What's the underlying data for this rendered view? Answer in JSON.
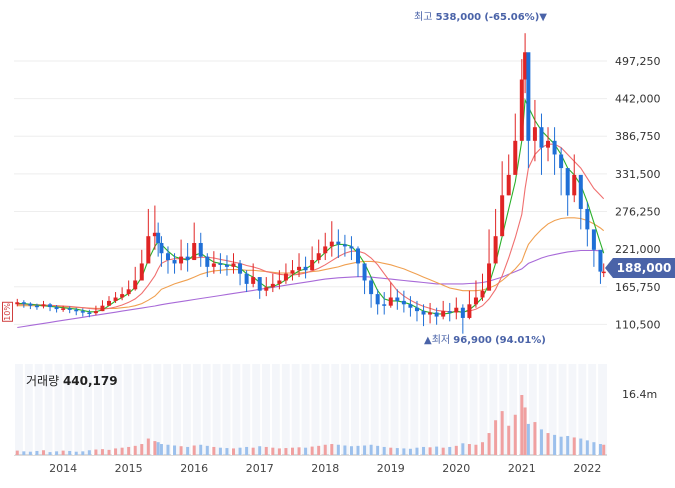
{
  "chart_data": {
    "type": "candlestick",
    "y_axis": {
      "ticks": [
        110500,
        165750,
        221000,
        276250,
        331500,
        386750,
        442000,
        497250
      ],
      "labels": [
        "110,500",
        "165,750",
        "221,000",
        "276,250",
        "331,500",
        "386,750",
        "442,000",
        "497,250"
      ],
      "range": [
        70000,
        575000
      ]
    },
    "x_axis": {
      "labels": [
        "2014",
        "2015",
        "2016",
        "2017",
        "2018",
        "2019",
        "2020",
        "2021",
        "2022"
      ],
      "range": [
        2013.25,
        2022.3
      ]
    },
    "high_annotation": {
      "label": "최고",
      "value": "538,000",
      "change": "(-65.06%)",
      "arrow": "▼"
    },
    "low_annotation": {
      "label": "최저",
      "value": "96,900",
      "change": "(94.01%)",
      "arrow": "▲"
    },
    "current_price": "188,000",
    "volume": {
      "label": "거래량",
      "value": "440,179",
      "max_tick": "16.4m"
    },
    "side_label": "10%",
    "colors": {
      "up": "#e02424",
      "down": "#1f6fd6",
      "ma5": "#2bb02b",
      "ma20": "#f07070",
      "ma60": "#f0a050",
      "ma120": "#a86ad8",
      "vol_up": "#f0a0a0",
      "vol_down": "#9cc0ec",
      "accent": "#4a63a8"
    },
    "series": [
      {
        "name": "price_close",
        "x": [
          2013.3,
          2013.4,
          2013.5,
          2013.6,
          2013.7,
          2013.8,
          2013.9,
          2014.0,
          2014.1,
          2014.2,
          2014.3,
          2014.4,
          2014.5,
          2014.6,
          2014.7,
          2014.8,
          2014.9,
          2015.0,
          2015.1,
          2015.2,
          2015.3,
          2015.4,
          2015.45,
          2015.5,
          2015.6,
          2015.7,
          2015.8,
          2015.9,
          2016.0,
          2016.1,
          2016.2,
          2016.3,
          2016.4,
          2016.5,
          2016.6,
          2016.7,
          2016.8,
          2016.9,
          2017.0,
          2017.1,
          2017.2,
          2017.3,
          2017.4,
          2017.5,
          2017.6,
          2017.7,
          2017.8,
          2017.9,
          2018.0,
          2018.1,
          2018.2,
          2018.3,
          2018.4,
          2018.5,
          2018.6,
          2018.7,
          2018.8,
          2018.9,
          2019.0,
          2019.1,
          2019.2,
          2019.3,
          2019.4,
          2019.5,
          2019.6,
          2019.7,
          2019.8,
          2019.9,
          2020.0,
          2020.1,
          2020.2,
          2020.3,
          2020.4,
          2020.5,
          2020.6,
          2020.7,
          2020.8,
          2020.9,
          2021.0,
          2021.05,
          2021.1,
          2021.2,
          2021.3,
          2021.4,
          2021.5,
          2021.6,
          2021.7,
          2021.8,
          2021.9,
          2022.0,
          2022.1,
          2022.2,
          2022.25
        ],
        "y": [
          143000,
          141000,
          138000,
          137000,
          140000,
          136000,
          133000,
          134000,
          132000,
          130000,
          128000,
          127000,
          130000,
          138000,
          145000,
          150000,
          155000,
          162000,
          175000,
          200000,
          240000,
          245000,
          230000,
          215000,
          205000,
          200000,
          210000,
          205000,
          230000,
          210000,
          195000,
          200000,
          198000,
          195000,
          200000,
          185000,
          170000,
          180000,
          160000,
          165000,
          170000,
          175000,
          185000,
          190000,
          195000,
          190000,
          205000,
          215000,
          225000,
          232000,
          228000,
          225000,
          222000,
          200000,
          175000,
          155000,
          140000,
          138000,
          150000,
          145000,
          140000,
          135000,
          130000,
          125000,
          128000,
          122000,
          130000,
          128000,
          135000,
          120000,
          140000,
          150000,
          160000,
          200000,
          240000,
          300000,
          330000,
          380000,
          470000,
          510000,
          380000,
          400000,
          370000,
          380000,
          360000,
          340000,
          300000,
          330000,
          280000,
          250000,
          220000,
          188000,
          188000
        ]
      },
      {
        "name": "price_high",
        "y": [
          148000,
          146000,
          143000,
          141000,
          145000,
          142000,
          139000,
          138000,
          137000,
          135000,
          134000,
          132000,
          138000,
          146000,
          152000,
          158000,
          165000,
          175000,
          195000,
          220000,
          280000,
          285000,
          260000,
          240000,
          225000,
          215000,
          235000,
          230000,
          260000,
          245000,
          215000,
          218000,
          215000,
          212000,
          215000,
          205000,
          190000,
          200000,
          180000,
          180000,
          185000,
          190000,
          200000,
          205000,
          215000,
          210000,
          225000,
          235000,
          245000,
          262000,
          250000,
          242000,
          240000,
          225000,
          198000,
          180000,
          162000,
          158000,
          172000,
          162000,
          160000,
          152000,
          145000,
          140000,
          142000,
          135000,
          145000,
          142000,
          150000,
          140000,
          160000,
          175000,
          185000,
          250000,
          280000,
          350000,
          360000,
          420000,
          500000,
          538000,
          450000,
          440000,
          420000,
          400000,
          400000,
          370000,
          340000,
          360000,
          310000,
          290000,
          245000,
          205000,
          200000
        ]
      },
      {
        "name": "price_low",
        "y": [
          137000,
          135000,
          133000,
          132000,
          134000,
          130000,
          128000,
          129000,
          127000,
          124000,
          122000,
          121000,
          124000,
          130000,
          138000,
          142000,
          146000,
          152000,
          160000,
          180000,
          220000,
          220000,
          210000,
          195000,
          185000,
          185000,
          190000,
          188000,
          205000,
          195000,
          180000,
          185000,
          185000,
          182000,
          185000,
          168000,
          158000,
          165000,
          148000,
          152000,
          158000,
          162000,
          170000,
          175000,
          180000,
          178000,
          190000,
          200000,
          205000,
          210000,
          208000,
          210000,
          205000,
          180000,
          155000,
          135000,
          125000,
          125000,
          135000,
          132000,
          128000,
          122000,
          115000,
          108000,
          112000,
          110000,
          118000,
          115000,
          118000,
          96900,
          118000,
          135000,
          145000,
          175000,
          210000,
          260000,
          300000,
          340000,
          420000,
          450000,
          340000,
          350000,
          330000,
          350000,
          330000,
          300000,
          270000,
          290000,
          250000,
          225000,
          195000,
          170000,
          180000
        ]
      },
      {
        "name": "ma5",
        "y": [
          141000,
          141000,
          140000,
          139000,
          138000,
          137000,
          136000,
          135000,
          134000,
          133000,
          131000,
          129000,
          129000,
          132000,
          138000,
          145000,
          150000,
          156000,
          165000,
          180000,
          205000,
          225000,
          232000,
          228000,
          218000,
          210000,
          207000,
          205000,
          212000,
          215000,
          208000,
          202000,
          200000,
          198000,
          197000,
          193000,
          185000,
          180000,
          172000,
          165000,
          166000,
          170000,
          176000,
          183000,
          189000,
          192000,
          198000,
          207000,
          216000,
          225000,
          228000,
          228000,
          225000,
          215000,
          200000,
          180000,
          160000,
          148000,
          145000,
          145000,
          143000,
          140000,
          135000,
          130000,
          128000,
          126000,
          126000,
          127000,
          130000,
          128000,
          132000,
          140000,
          150000,
          170000,
          200000,
          240000,
          280000,
          320000,
          380000,
          440000,
          430000,
          410000,
          395000,
          385000,
          375000,
          360000,
          340000,
          330000,
          315000,
          290000,
          260000,
          230000,
          215000
        ]
      },
      {
        "name": "ma20",
        "y": [
          140000,
          140000,
          140000,
          139500,
          139000,
          138500,
          138000,
          137500,
          137000,
          136000,
          135000,
          134000,
          133000,
          133000,
          134000,
          136000,
          139000,
          143000,
          148000,
          156000,
          168000,
          182000,
          192000,
          200000,
          205000,
          207000,
          207000,
          207000,
          208000,
          209000,
          209000,
          208000,
          206000,
          204000,
          202000,
          200000,
          197000,
          195000,
          192000,
          188000,
          186000,
          184000,
          183000,
          183000,
          184000,
          186000,
          189000,
          193000,
          198000,
          204000,
          210000,
          215000,
          218000,
          218000,
          215000,
          208000,
          198000,
          185000,
          172000,
          160000,
          152000,
          146000,
          141000,
          137000,
          134000,
          131000,
          130000,
          129000,
          129000,
          129000,
          130000,
          133000,
          138000,
          148000,
          162000,
          182000,
          208000,
          238000,
          272000,
          310000,
          340000,
          360000,
          370000,
          375000,
          375000,
          370000,
          360000,
          350000,
          340000,
          325000,
          310000,
          300000,
          295000
        ]
      },
      {
        "name": "ma60",
        "y": [
          138000,
          138000,
          138000,
          138000,
          138000,
          137500,
          137000,
          136500,
          136000,
          135500,
          135000,
          134500,
          134000,
          134000,
          134000,
          134000,
          135000,
          136000,
          138000,
          141000,
          146000,
          152000,
          157000,
          162000,
          166000,
          170000,
          173000,
          176000,
          180000,
          184000,
          187000,
          189000,
          190000,
          191000,
          191000,
          191000,
          190000,
          190000,
          189000,
          188000,
          187000,
          186000,
          186000,
          186000,
          186000,
          187000,
          188000,
          189000,
          191000,
          193000,
          195000,
          198000,
          200000,
          202000,
          203000,
          203000,
          202000,
          200000,
          198000,
          195000,
          192000,
          188000,
          184000,
          180000,
          176000,
          172000,
          168000,
          164000,
          162000,
          160000,
          160000,
          160000,
          161000,
          164000,
          168000,
          175000,
          183000,
          192000,
          203000,
          216000,
          228000,
          240000,
          250000,
          258000,
          263000,
          266000,
          267000,
          267000,
          266000,
          263000,
          258000,
          252000,
          248000
        ]
      },
      {
        "name": "ma120",
        "y": [
          106000,
          107500,
          109000,
          110500,
          112000,
          113500,
          115000,
          116500,
          118000,
          119500,
          121000,
          122500,
          124000,
          125500,
          127000,
          128500,
          130000,
          131500,
          133000,
          134500,
          136000,
          137500,
          138500,
          139500,
          141000,
          142500,
          144000,
          145500,
          147000,
          148500,
          150000,
          151500,
          153000,
          154500,
          156000,
          157500,
          159000,
          160500,
          162000,
          163500,
          165000,
          166500,
          168000,
          169500,
          171000,
          172500,
          174000,
          175500,
          177000,
          178000,
          179000,
          179500,
          180000,
          180500,
          180500,
          180000,
          179000,
          178000,
          177000,
          176000,
          175000,
          174000,
          173000,
          172000,
          171000,
          170000,
          170000,
          170000,
          170000,
          170000,
          170500,
          171000,
          172000,
          174000,
          177000,
          180000,
          184000,
          188000,
          192000,
          196000,
          200000,
          204000,
          208000,
          211000,
          213000,
          215000,
          217000,
          218000,
          219000,
          219000,
          219000,
          218500,
          218000
        ]
      },
      {
        "name": "volume",
        "y": [
          1.2,
          1.0,
          0.9,
          1.1,
          1.3,
          0.8,
          1.0,
          1.2,
          1.1,
          0.9,
          1.0,
          1.3,
          1.5,
          1.6,
          1.4,
          1.8,
          2.0,
          2.2,
          2.5,
          3.0,
          4.5,
          3.8,
          3.5,
          3.0,
          2.8,
          2.6,
          2.4,
          2.2,
          2.6,
          2.8,
          2.5,
          2.2,
          2.0,
          1.9,
          1.8,
          2.0,
          2.2,
          2.0,
          2.4,
          2.2,
          2.0,
          1.8,
          1.9,
          2.0,
          2.1,
          2.0,
          2.3,
          2.5,
          2.8,
          3.0,
          2.8,
          2.6,
          2.4,
          2.5,
          2.6,
          2.8,
          2.5,
          2.2,
          2.0,
          1.9,
          1.8,
          1.7,
          2.0,
          2.2,
          2.1,
          2.3,
          2.0,
          2.2,
          2.5,
          3.2,
          3.0,
          2.8,
          3.5,
          6.0,
          9.5,
          12.0,
          8.0,
          11.0,
          16.4,
          13.0,
          8.5,
          9.0,
          7.0,
          6.0,
          5.5,
          5.0,
          5.2,
          4.8,
          4.5,
          4.0,
          3.5,
          3.0,
          2.8
        ]
      }
    ]
  }
}
